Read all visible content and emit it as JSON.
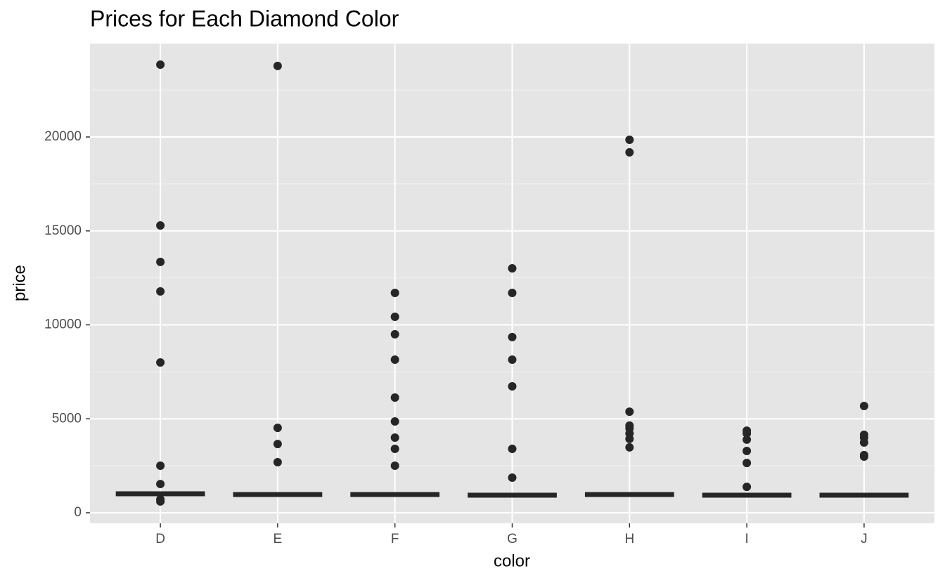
{
  "chart_data": {
    "type": "strip",
    "title": "Prices for Each Diamond Color",
    "x_label": "color",
    "y_label": "price",
    "categories": [
      "D",
      "E",
      "F",
      "G",
      "H",
      "I",
      "J"
    ],
    "points": [
      [
        23850,
        15290,
        13350,
        11780,
        8000,
        2505,
        1530,
        710,
        600
      ],
      [
        23780,
        4520,
        3660,
        2690
      ],
      [
        11700,
        10430,
        9500,
        8150,
        6130,
        4860,
        4000,
        3400,
        2505
      ],
      [
        13010,
        11700,
        9350,
        8150,
        6730,
        3400,
        1870
      ],
      [
        19850,
        19180,
        5380,
        4640,
        4490,
        4220,
        3930,
        3480
      ],
      [
        4370,
        4220,
        3890,
        3290,
        2650,
        1380
      ],
      [
        5680,
        4150,
        4000,
        3740,
        3070,
        2990
      ]
    ],
    "medians": [
      1010,
      970,
      970,
      935,
      970,
      935,
      935
    ],
    "color": "#262626",
    "ylim": [
      -561,
      24972
    ],
    "yticks": [
      0,
      5000,
      10000,
      15000,
      20000
    ],
    "minor_yticks": [
      2500,
      7500,
      12500,
      17500,
      22500
    ],
    "grid": true
  }
}
